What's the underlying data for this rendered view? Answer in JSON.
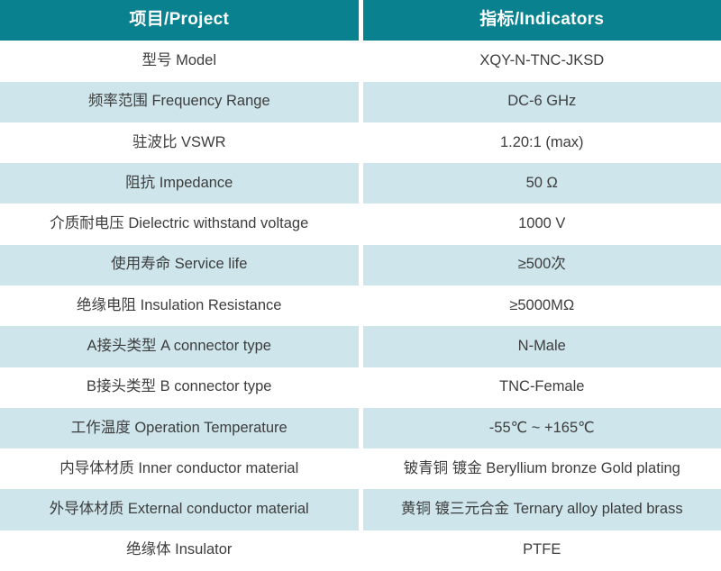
{
  "table": {
    "title": "product-specification-table",
    "header": {
      "project": "项目/Project",
      "indicators": "指标/Indicators"
    },
    "rows": [
      {
        "project": "型号 Model",
        "indicator": "XQY-N-TNC-JKSD"
      },
      {
        "project": "频率范围 Frequency Range",
        "indicator": "DC-6 GHz"
      },
      {
        "project": "驻波比 VSWR",
        "indicator": "1.20:1 (max)"
      },
      {
        "project": "阻抗 Impedance",
        "indicator": "50 Ω"
      },
      {
        "project": "介质耐电压 Dielectric withstand voltage",
        "indicator": "1000 V"
      },
      {
        "project": "使用寿命 Service life",
        "indicator": "≥500次"
      },
      {
        "project": "绝缘电阻 Insulation Resistance",
        "indicator": "≥5000MΩ"
      },
      {
        "project": "A接头类型 A connector type",
        "indicator": "N-Male"
      },
      {
        "project": "B接头类型 B connector type",
        "indicator": "TNC-Female"
      },
      {
        "project": "工作温度 Operation Temperature",
        "indicator": "-55℃ ~ +165℃"
      },
      {
        "project": "内导体材质 Inner conductor material",
        "indicator": "铍青铜 镀金 Beryllium bronze Gold plating"
      },
      {
        "project": "外导体材质 External conductor material",
        "indicator": "黄铜 镀三元合金 Ternary alloy plated brass"
      },
      {
        "project": "绝缘体 Insulator",
        "indicator": "PTFE"
      }
    ],
    "colors": {
      "header_bg": "#09818f",
      "header_text": "#ffffff",
      "row_alt_bg": "#cde5eb",
      "row_bg": "#ffffff",
      "body_text": "#3d3d3d",
      "divider": "#ffffff"
    }
  }
}
